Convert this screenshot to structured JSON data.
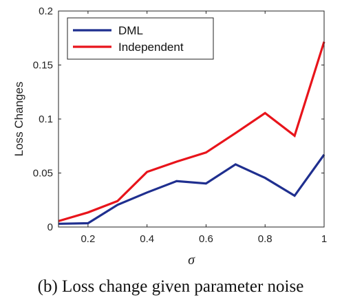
{
  "chart_data": {
    "type": "line",
    "x": [
      0.1,
      0.2,
      0.3,
      0.4,
      0.5,
      0.6,
      0.7,
      0.8,
      0.9,
      1.0
    ],
    "series": [
      {
        "name": "DML",
        "color": "#1f2f8f",
        "values": [
          0.003,
          0.0035,
          0.0205,
          0.032,
          0.0425,
          0.0403,
          0.058,
          0.0455,
          0.029,
          0.067
        ]
      },
      {
        "name": "Independent",
        "color": "#e8141b",
        "values": [
          0.0055,
          0.0135,
          0.024,
          0.051,
          0.0605,
          0.069,
          0.087,
          0.1055,
          0.0845,
          0.1715
        ]
      }
    ],
    "xlabel": "σ",
    "ylabel": "Loss Changes",
    "xlim": [
      0.1,
      1.0
    ],
    "ylim": [
      0,
      0.2
    ],
    "xticks": [
      0.2,
      0.4,
      0.6,
      0.8,
      1.0
    ],
    "xtick_labels": [
      "0.2",
      "0.4",
      "0.6",
      "0.8",
      "1"
    ],
    "yticks": [
      0,
      0.05,
      0.1,
      0.15,
      0.2
    ],
    "ytick_labels": [
      "0",
      "0.05",
      "0.1",
      "0.15",
      "0.2"
    ],
    "grid": false,
    "legend_position": "top-left"
  },
  "caption": "(b) Loss change given parameter noise"
}
